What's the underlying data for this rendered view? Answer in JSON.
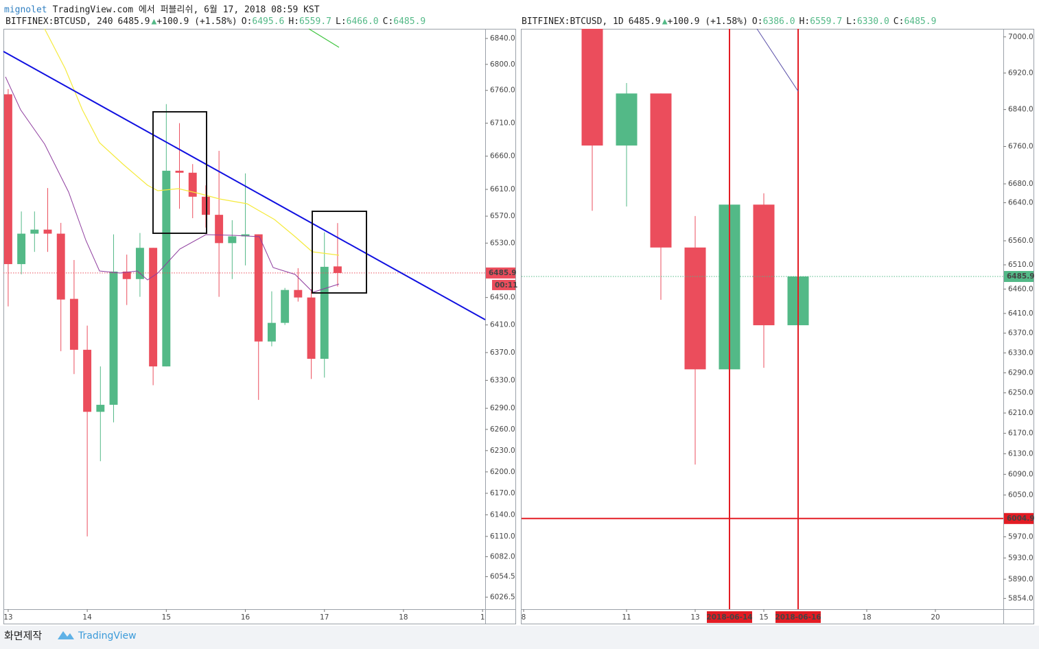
{
  "header": {
    "author": "mignolet",
    "published": "TradingView.com 에서 퍼블리쉬, 6월 17, 2018 08:59 KST"
  },
  "footer": {
    "made_by": "화면제작",
    "brand": "TradingView"
  },
  "chart_data": [
    {
      "type": "candlestick",
      "symbol": "BITFINEX:BTCUSD, 240",
      "price": "6485.9",
      "arrow": "▲",
      "change": "+100.9 (+1.58%)",
      "fields": [
        {
          "label": "O:",
          "value": "6495.6"
        },
        {
          "label": "H:",
          "value": "6559.7"
        },
        {
          "label": "L:",
          "value": "6466.0"
        },
        {
          "label": "C:",
          "value": "6485.9"
        }
      ],
      "up_color": "#53b987",
      "down_color": "#eb4d5c",
      "log": true,
      "x": [
        0,
        1,
        2,
        3,
        4,
        5,
        6,
        7,
        8,
        9,
        10,
        11,
        12,
        13,
        14,
        15,
        16,
        17,
        18,
        19,
        20,
        21,
        22,
        23,
        24,
        25
      ],
      "open": [
        6754,
        6499,
        6544,
        6550,
        6544,
        6448,
        6374,
        6285,
        6295,
        6488,
        6477,
        6523,
        6350,
        6638,
        6635,
        6599,
        6572,
        6530,
        6540,
        6543,
        6386,
        6413,
        6461,
        6450,
        6361,
        6495.6
      ],
      "high": [
        6762,
        6577,
        6577,
        6612,
        6560,
        6505,
        6409,
        6350,
        6543,
        6513,
        6545,
        6523,
        6739,
        6710,
        6648,
        6616,
        6668,
        6564,
        6634,
        6543,
        6459,
        6464,
        6493,
        6462,
        6546,
        6559.7
      ],
      "low": [
        6437,
        6484,
        6517,
        6517,
        6372,
        6339,
        6110,
        6215,
        6270,
        6439,
        6451,
        6323,
        6350,
        6581,
        6567,
        6553,
        6451,
        6477,
        6497,
        6302,
        6379,
        6410,
        6444,
        6332,
        6334,
        6466.0
      ],
      "close": [
        6499,
        6544,
        6550,
        6544,
        6447,
        6374,
        6285,
        6295,
        6488,
        6477,
        6523,
        6350,
        6638,
        6635,
        6599,
        6572,
        6530,
        6540,
        6543,
        6386,
        6413,
        6461,
        6450,
        6361,
        6495,
        6485.9
      ],
      "xlim": [
        -0.36,
        36.2
      ],
      "xticks": [
        {
          "value": 0,
          "label": "13"
        },
        {
          "value": 6,
          "label": "14"
        },
        {
          "value": 12,
          "label": "15"
        },
        {
          "value": 18,
          "label": "16"
        },
        {
          "value": 24,
          "label": "17"
        },
        {
          "value": 30,
          "label": "18"
        },
        {
          "value": 36,
          "label": "1"
        }
      ],
      "ylim": [
        6010,
        6855
      ],
      "yticks": [
        {
          "value": 6840,
          "label": "6840.0"
        },
        {
          "value": 6800,
          "label": "6800.0"
        },
        {
          "value": 6760,
          "label": "6760.0"
        },
        {
          "value": 6710,
          "label": "6710.0"
        },
        {
          "value": 6660,
          "label": "6660.0"
        },
        {
          "value": 6610,
          "label": "6610.0"
        },
        {
          "value": 6570,
          "label": "6570.0"
        },
        {
          "value": 6530,
          "label": "6530.0"
        },
        {
          "value": 6450,
          "label": "6450.0"
        },
        {
          "value": 6410,
          "label": "6410.0"
        },
        {
          "value": 6370,
          "label": "6370.0"
        },
        {
          "value": 6330,
          "label": "6330.0"
        },
        {
          "value": 6290,
          "label": "6290.0"
        },
        {
          "value": 6260,
          "label": "6260.0"
        },
        {
          "value": 6230,
          "label": "6230.0"
        },
        {
          "value": 6200,
          "label": "6200.0"
        },
        {
          "value": 6170,
          "label": "6170.0"
        },
        {
          "value": 6140,
          "label": "6140.0"
        },
        {
          "value": 6110,
          "label": "6110.0"
        },
        {
          "value": 6082,
          "label": "6082.0"
        },
        6054.5,
        6026.5
      ],
      "price_line": 6485.9,
      "price_line_color": "#eb4d5c",
      "countdown": "00:11"
    },
    {
      "type": "candlestick",
      "symbol": "BITFINEX:BTCUSD, 1D",
      "price": "6485.9",
      "arrow": "▲",
      "change": "+100.9 (+1.58%)",
      "fields": [
        {
          "label": "O:",
          "value": "6386.0"
        },
        {
          "label": "H:",
          "value": "6559.7"
        },
        {
          "label": "L:",
          "value": "6330.0"
        },
        {
          "label": "C:",
          "value": "6485.9"
        }
      ],
      "up_color": "#53b987",
      "down_color": "#eb4d5c",
      "log": true,
      "x": [
        10,
        11,
        12,
        13,
        14,
        15,
        16
      ],
      "open": [
        7495,
        6762,
        6875,
        6546,
        6297,
        6636,
        6386.0
      ],
      "high": [
        7500,
        6898,
        6875,
        6612,
        6640,
        6660,
        6559.7
      ],
      "low": [
        6623,
        6632,
        6438,
        6109,
        6270,
        6300,
        6330.0
      ],
      "close": [
        6762,
        6875,
        6546,
        6297,
        6636,
        6386,
        6485.9
      ],
      "xlim": [
        7.94,
        21.98
      ],
      "xticks": [
        {
          "value": 8,
          "label": "8"
        },
        {
          "value": 11,
          "label": "11"
        },
        {
          "value": 13,
          "label": "13"
        },
        {
          "value": 15,
          "label": "15"
        },
        {
          "value": 18,
          "label": "18"
        },
        {
          "value": 20,
          "label": "20"
        }
      ],
      "ylim": [
        5834,
        7018
      ],
      "yticks": [
        {
          "value": 7000,
          "label": "7000.0"
        },
        {
          "value": 6920,
          "label": "6920.0"
        },
        {
          "value": 6840,
          "label": "6840.0"
        },
        {
          "value": 6760,
          "label": "6760.0"
        },
        {
          "value": 6680,
          "label": "6680.0"
        },
        {
          "value": 6640,
          "label": "6640.0"
        },
        {
          "value": 6560,
          "label": "6560.0"
        },
        {
          "value": 6510,
          "label": "6510.0"
        },
        {
          "value": 6460,
          "label": "6460.0"
        },
        {
          "value": 6410,
          "label": "6410.0"
        },
        {
          "value": 6370,
          "label": "6370.0"
        },
        {
          "value": 6330,
          "label": "6330.0"
        },
        {
          "value": 6290,
          "label": "6290.0"
        },
        {
          "value": 6250,
          "label": "6250.0"
        },
        {
          "value": 6210,
          "label": "6210.0"
        },
        {
          "value": 6170,
          "label": "6170.0"
        },
        {
          "value": 6130,
          "label": "6130.0"
        },
        {
          "value": 6090,
          "label": "6090.0"
        },
        {
          "value": 6050,
          "label": "6050.0"
        },
        {
          "value": 5970,
          "label": "5970.0"
        },
        {
          "value": 5930,
          "label": "5930.0"
        },
        {
          "value": 5890,
          "label": "5890.0"
        },
        {
          "value": 5854,
          "label": "5854.0"
        }
      ],
      "price_line": 6485.9,
      "price_line_color": "#53b987",
      "hline": 6004.9,
      "hline_color": "#e31b23",
      "vlines": [
        {
          "value": 14,
          "label": "2018-06-14"
        },
        {
          "value": 16,
          "label": "2018-06-16"
        }
      ],
      "vline_color": "#e31b23"
    }
  ]
}
